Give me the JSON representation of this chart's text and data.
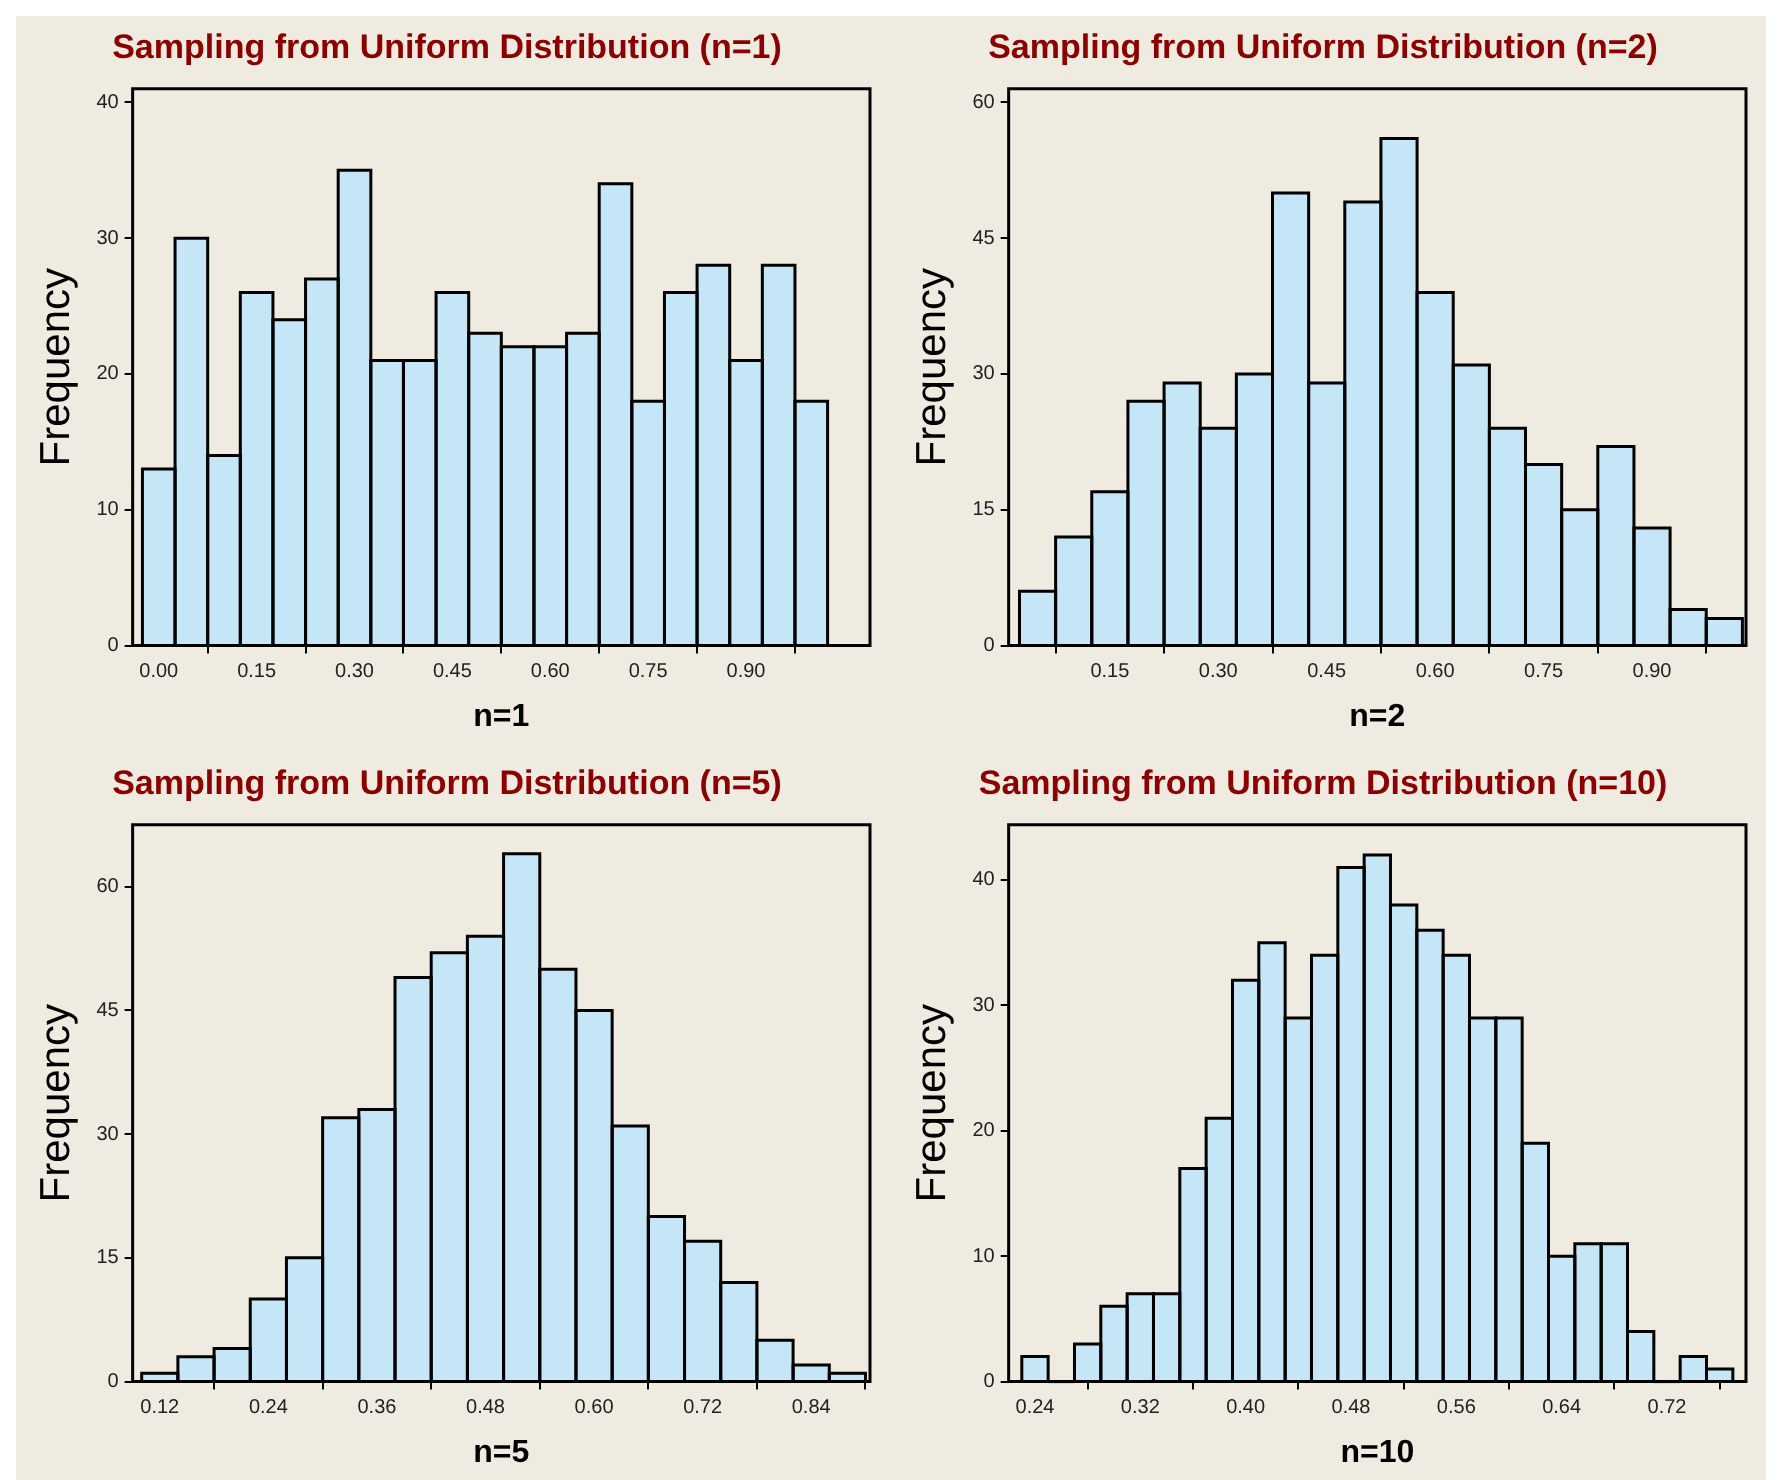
{
  "chart_data": [
    {
      "type": "histogram",
      "title": "Sampling from Uniform Distribution (n=1)",
      "xlabel": "n=1",
      "ylabel": "Frequency",
      "color": "#c4e6f7",
      "grid": false,
      "bins": [
        -0.025,
        0.025,
        0.075,
        0.125,
        0.175,
        0.225,
        0.275,
        0.325,
        0.375,
        0.425,
        0.475,
        0.525,
        0.575,
        0.625,
        0.675,
        0.725,
        0.775,
        0.825,
        0.875,
        0.925,
        0.975,
        1.025
      ],
      "values": [
        13,
        30,
        14,
        26,
        24,
        27,
        35,
        21,
        21,
        26,
        23,
        22,
        22,
        23,
        34,
        18,
        26,
        28,
        21,
        28,
        18
      ],
      "xlim": [
        -0.04,
        1.09
      ],
      "xticks": [
        {
          "value": 0,
          "label": "0.00"
        },
        {
          "value": 0.15,
          "label": "0.15"
        },
        {
          "value": 0.3,
          "label": "0.30"
        },
        {
          "value": 0.45,
          "label": "0.45"
        },
        {
          "value": 0.6,
          "label": "0.60"
        },
        {
          "value": 0.75,
          "label": "0.75"
        },
        {
          "value": 0.9,
          "label": "0.90"
        }
      ],
      "ylim": [
        0,
        41
      ],
      "yticks": [
        0,
        10,
        20,
        30,
        40
      ]
    },
    {
      "type": "histogram",
      "title": "Sampling from Uniform Distribution (n=2)",
      "xlabel": "n=2",
      "ylabel": "Frequency",
      "color": "#c4e6f7",
      "grid": false,
      "bins": [
        0.025,
        0.075,
        0.125,
        0.175,
        0.225,
        0.275,
        0.325,
        0.375,
        0.425,
        0.475,
        0.525,
        0.575,
        0.625,
        0.675,
        0.725,
        0.775,
        0.825,
        0.875,
        0.925,
        0.975,
        1.025
      ],
      "values": [
        6,
        12,
        17,
        27,
        29,
        24,
        30,
        50,
        29,
        49,
        56,
        39,
        31,
        24,
        20,
        15,
        22,
        13,
        4,
        3
      ],
      "xlim": [
        0.01,
        1.03
      ],
      "xticks": [
        {
          "value": 0.15,
          "label": "0.15"
        },
        {
          "value": 0.3,
          "label": "0.30"
        },
        {
          "value": 0.45,
          "label": "0.45"
        },
        {
          "value": 0.6,
          "label": "0.60"
        },
        {
          "value": 0.75,
          "label": "0.75"
        },
        {
          "value": 0.9,
          "label": "0.90"
        }
      ],
      "ylim": [
        0,
        61.5
      ],
      "yticks": [
        0,
        15,
        30,
        45,
        60
      ]
    },
    {
      "type": "histogram",
      "title": "Sampling from Uniform Distribution (n=5)",
      "xlabel": "n=5",
      "ylabel": "Frequency",
      "color": "#c4e6f7",
      "grid": false,
      "bins": [
        0.1,
        0.14,
        0.18,
        0.22,
        0.26,
        0.3,
        0.34,
        0.38,
        0.42,
        0.46,
        0.5,
        0.54,
        0.58,
        0.62,
        0.66,
        0.7,
        0.74,
        0.78,
        0.82,
        0.86,
        0.9
      ],
      "values": [
        1,
        3,
        4,
        10,
        15,
        32,
        33,
        49,
        52,
        54,
        64,
        50,
        45,
        31,
        20,
        17,
        12,
        5,
        2,
        1
      ],
      "xlim": [
        0.09,
        0.905
      ],
      "xticks": [
        0.12,
        0.24,
        0.36,
        0.48,
        {
          "value": 0.6,
          "label": "0.60"
        },
        0.72,
        0.84
      ],
      "ylim": [
        0,
        67.5
      ],
      "yticks": [
        0,
        15,
        30,
        45,
        60
      ]
    },
    {
      "type": "histogram",
      "title": "Sampling from Uniform Distribution (n=10)",
      "xlabel": "n=10",
      "ylabel": "Frequency",
      "color": "#c4e6f7",
      "grid": false,
      "bins": [
        0.23,
        0.25,
        0.27,
        0.29,
        0.31,
        0.33,
        0.35,
        0.37,
        0.39,
        0.41,
        0.43,
        0.45,
        0.47,
        0.49,
        0.51,
        0.53,
        0.55,
        0.57,
        0.59,
        0.61,
        0.63,
        0.65,
        0.67,
        0.69,
        0.71,
        0.73,
        0.75,
        0.77
      ],
      "values": [
        2,
        0,
        3,
        6,
        7,
        7,
        17,
        21,
        32,
        35,
        29,
        34,
        41,
        42,
        38,
        36,
        34,
        29,
        29,
        19,
        10,
        11,
        11,
        4,
        0,
        2,
        1
      ],
      "xlim": [
        0.22,
        0.78
      ],
      "xticks": [
        0.24,
        0.32,
        {
          "value": 0.4,
          "label": "0.40"
        },
        0.48,
        0.56,
        0.64,
        0.72
      ],
      "ylim": [
        0,
        44.4
      ],
      "yticks": [
        0,
        10,
        20,
        30,
        40
      ]
    }
  ]
}
